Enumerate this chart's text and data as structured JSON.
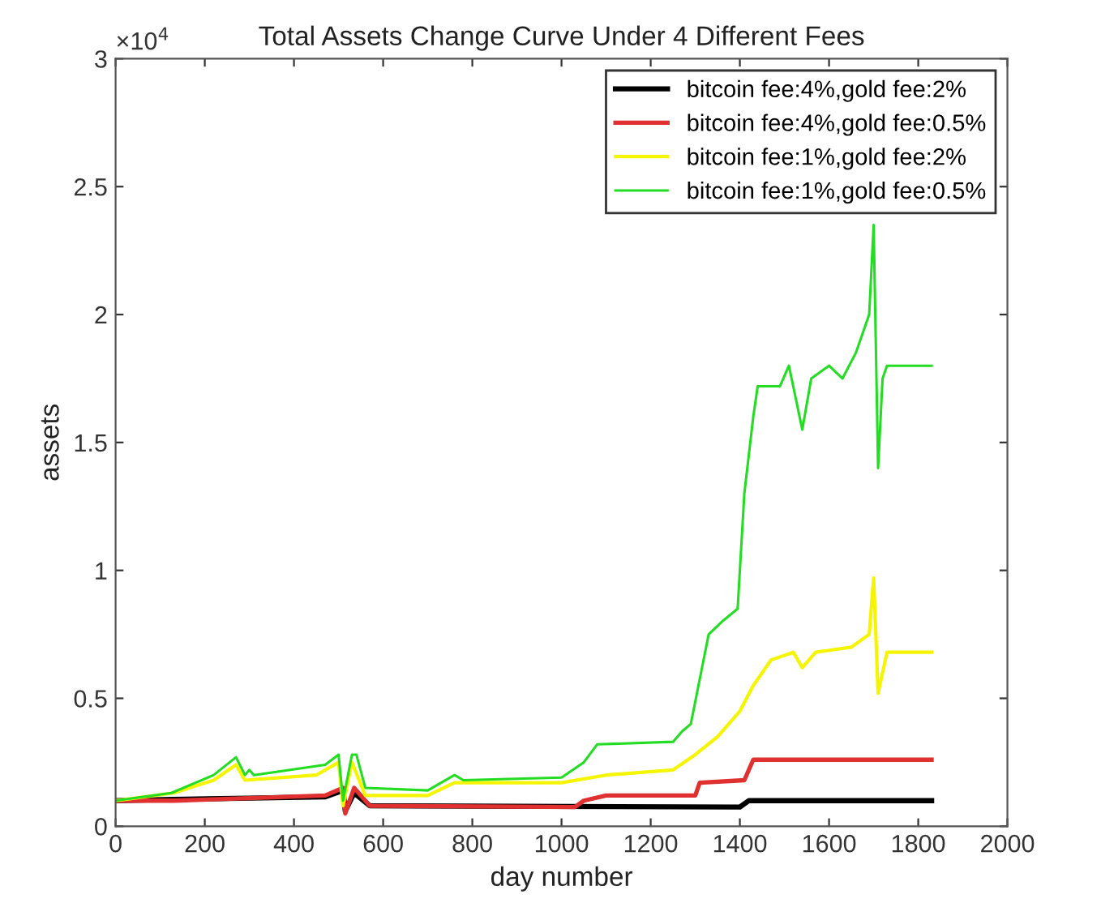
{
  "chart_data": {
    "type": "line",
    "title": "Total Assets Change Curve Under 4 Different Fees",
    "xlabel": "day number",
    "ylabel": "assets",
    "annotations": [
      "×10$^{4}$"
    ],
    "xlim": [
      0,
      2000
    ],
    "xticks": [
      0,
      200,
      400,
      600,
      800,
      1000,
      1200,
      1400,
      1600,
      1800,
      2000
    ],
    "ylim": [
      0,
      3
    ],
    "yticks": [
      0,
      0.5,
      1,
      1.5,
      2,
      2.5,
      3
    ],
    "grid": false,
    "legend": "top right",
    "marker": "none",
    "line_style": "solid",
    "series": [
      {
        "name": "bitcoin fee:4%,gold fee:2%",
        "color": "#000000",
        "x": [
          0,
          130,
          300,
          470,
          510,
          515,
          535,
          570,
          1400,
          1420,
          1830
        ],
        "values": [
          0.1,
          0.105,
          0.11,
          0.115,
          0.14,
          0.06,
          0.13,
          0.08,
          0.075,
          0.1,
          0.1
        ]
      },
      {
        "name": "bitcoin fee:4%,gold fee:0.5%",
        "color": "#e03030",
        "x": [
          0,
          130,
          300,
          470,
          510,
          515,
          535,
          570,
          1030,
          1050,
          1100,
          1300,
          1310,
          1410,
          1430,
          1830
        ],
        "values": [
          0.1,
          0.1,
          0.11,
          0.12,
          0.15,
          0.05,
          0.15,
          0.08,
          0.075,
          0.1,
          0.12,
          0.12,
          0.17,
          0.18,
          0.26,
          0.26
        ]
      },
      {
        "name": "bitcoin fee:1%,gold fee:2%",
        "color": "#f5f500",
        "x": [
          0,
          130,
          220,
          270,
          290,
          450,
          500,
          510,
          530,
          560,
          700,
          760,
          1000,
          1100,
          1250,
          1300,
          1350,
          1400,
          1430,
          1470,
          1520,
          1540,
          1570,
          1650,
          1690,
          1700,
          1710,
          1730,
          1830
        ],
        "values": [
          0.1,
          0.13,
          0.18,
          0.24,
          0.18,
          0.2,
          0.25,
          0.08,
          0.25,
          0.12,
          0.12,
          0.17,
          0.17,
          0.2,
          0.22,
          0.28,
          0.35,
          0.45,
          0.55,
          0.65,
          0.68,
          0.62,
          0.68,
          0.7,
          0.75,
          0.97,
          0.52,
          0.68,
          0.68
        ]
      },
      {
        "name": "bitcoin fee:1%,gold fee:0.5%",
        "color": "#22dd22",
        "x": [
          0,
          125,
          220,
          270,
          290,
          300,
          310,
          470,
          500,
          510,
          530,
          540,
          560,
          700,
          760,
          780,
          1000,
          1050,
          1080,
          1250,
          1270,
          1290,
          1330,
          1360,
          1395,
          1410,
          1430,
          1440,
          1490,
          1510,
          1540,
          1560,
          1600,
          1630,
          1660,
          1690,
          1700,
          1710,
          1720,
          1730,
          1830
        ],
        "values": [
          0.1,
          0.13,
          0.2,
          0.27,
          0.2,
          0.22,
          0.2,
          0.24,
          0.28,
          0.1,
          0.28,
          0.28,
          0.15,
          0.14,
          0.2,
          0.18,
          0.19,
          0.25,
          0.32,
          0.33,
          0.37,
          0.4,
          0.75,
          0.8,
          0.85,
          1.3,
          1.6,
          1.72,
          1.72,
          1.8,
          1.55,
          1.75,
          1.8,
          1.75,
          1.85,
          2.0,
          2.35,
          1.4,
          1.75,
          1.8,
          1.8
        ]
      }
    ]
  }
}
